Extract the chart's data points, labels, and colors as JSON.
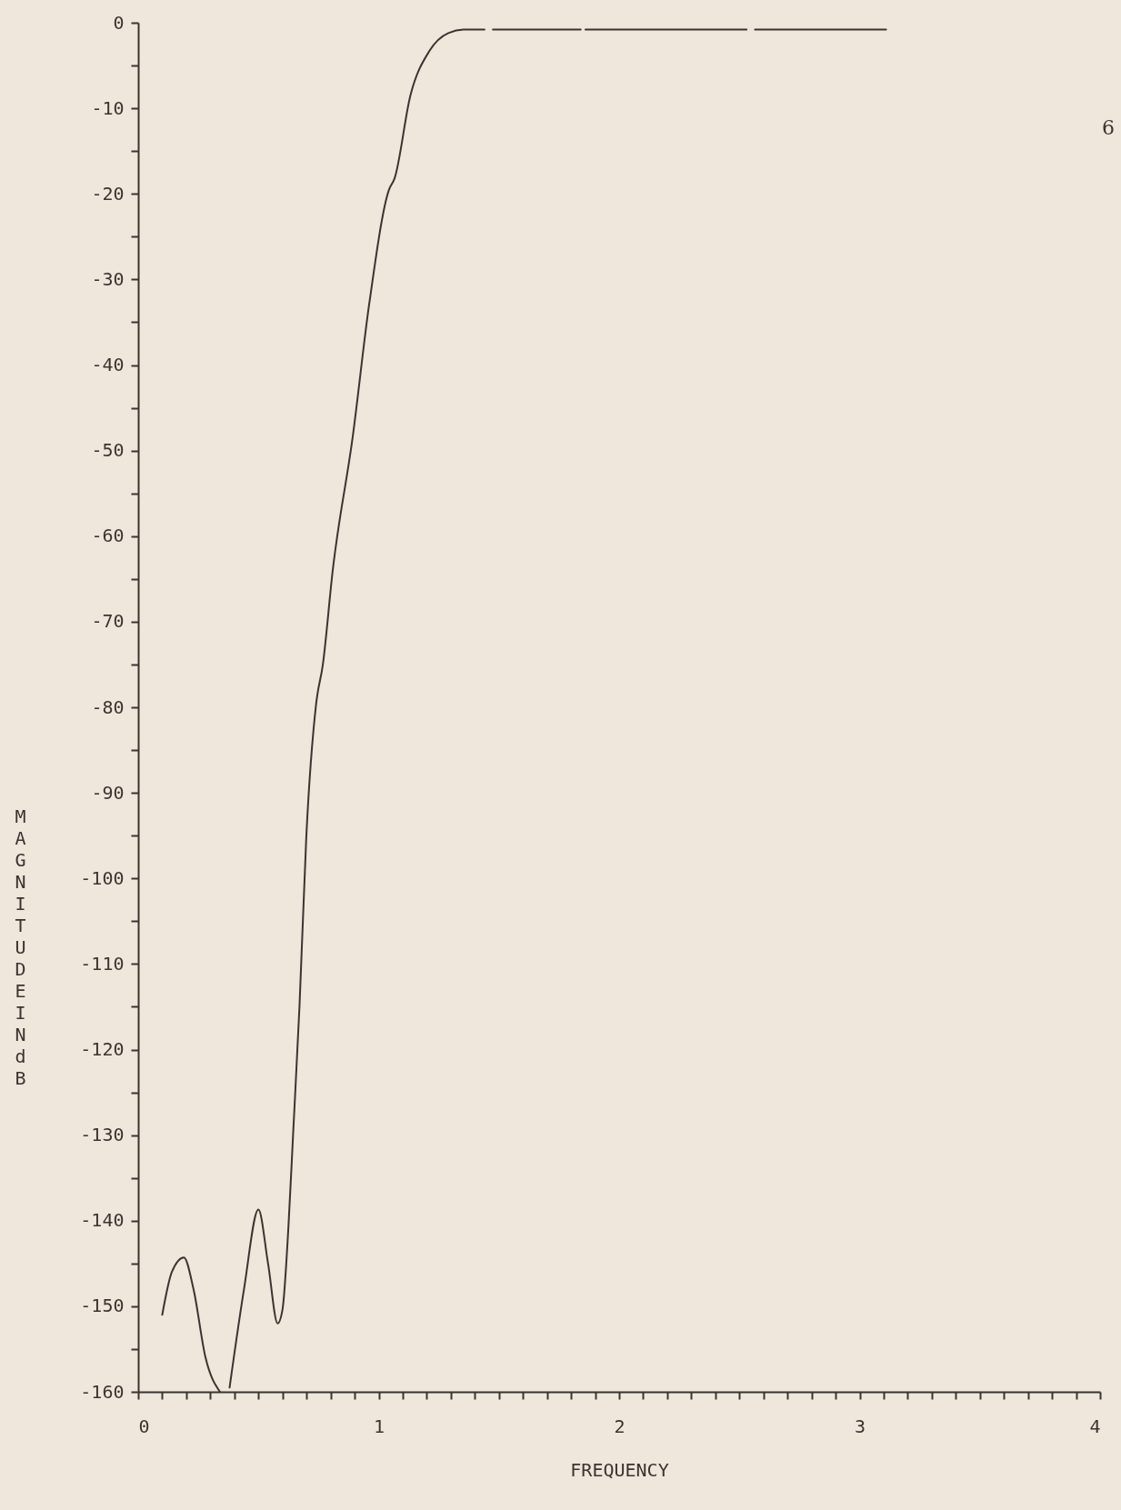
{
  "chart_data": {
    "type": "line",
    "xlabel": "FREQUENCY",
    "ylabel": "MAGNITUDE IN dB",
    "annotations": [
      "6"
    ],
    "x": [
      0.1,
      0.14,
      0.19,
      0.23,
      0.28,
      0.34,
      0.35,
      0.38,
      0.44,
      0.5,
      0.54,
      0.58,
      0.6,
      0.625,
      0.644,
      0.671,
      0.699,
      0.74,
      0.768,
      0.809,
      0.892,
      0.961,
      1.043,
      1.066,
      1.132,
      1.211,
      1.29,
      1.356,
      1.44,
      1.45,
      1.475,
      1.84,
      1.85,
      1.86,
      2.53,
      2.55,
      2.565,
      3.11
    ],
    "series": [
      {
        "color": "#3a3530",
        "values": [
          -151,
          -146,
          -144.3,
          -148,
          -156,
          -160,
          null,
          -159.5,
          -148,
          -138.7,
          -145,
          -152,
          -150.4,
          -140.6,
          -130,
          -114.8,
          -95.2,
          -79.6,
          -75,
          -64,
          -48.4,
          -32.8,
          -19.5,
          -18.2,
          -8.5,
          -3.3,
          -1.2,
          -0.8,
          -0.8,
          null,
          -0.8,
          -0.8,
          null,
          -0.8,
          -0.8,
          null,
          -0.8,
          -0.8
        ]
      }
    ],
    "xlim": [
      0,
      4
    ],
    "ylim": [
      -160,
      0
    ],
    "xticks": [
      0,
      {
        "value": 0.1,
        "label": null
      },
      {
        "value": 0.2,
        "label": null
      },
      {
        "value": 0.3,
        "label": null
      },
      {
        "value": 0.4,
        "label": null
      },
      {
        "value": 0.5,
        "label": null
      },
      {
        "value": 0.6,
        "label": null
      },
      {
        "value": 0.7,
        "label": null
      },
      {
        "value": 0.8,
        "label": null
      },
      {
        "value": 0.9,
        "label": null
      },
      1,
      {
        "value": 1.1,
        "label": null
      },
      {
        "value": 1.2,
        "label": null
      },
      {
        "value": 1.3,
        "label": null
      },
      {
        "value": 1.4,
        "label": null
      },
      {
        "value": 1.5,
        "label": null
      },
      {
        "value": 1.6,
        "label": null
      },
      {
        "value": 1.7,
        "label": null
      },
      {
        "value": 1.8,
        "label": null
      },
      {
        "value": 1.9,
        "label": null
      },
      2,
      {
        "value": 2.1,
        "label": null
      },
      {
        "value": 2.2,
        "label": null
      },
      {
        "value": 2.3,
        "label": null
      },
      {
        "value": 2.4,
        "label": null
      },
      {
        "value": 2.5,
        "label": null
      },
      {
        "value": 2.6,
        "label": null
      },
      {
        "value": 2.7,
        "label": null
      },
      {
        "value": 2.8,
        "label": null
      },
      {
        "value": 2.9,
        "label": null
      },
      3,
      {
        "value": 3.1,
        "label": null
      },
      {
        "value": 3.2,
        "label": null
      },
      {
        "value": 3.3,
        "label": null
      },
      {
        "value": 3.4,
        "label": null
      },
      {
        "value": 3.5,
        "label": null
      },
      {
        "value": 3.6,
        "label": null
      },
      {
        "value": 3.7,
        "label": null
      },
      {
        "value": 3.8,
        "label": null
      },
      {
        "value": 3.9,
        "label": null
      },
      4
    ],
    "yticks": [
      0,
      {
        "value": -5,
        "label": null
      },
      -10,
      {
        "value": -15,
        "label": null
      },
      -20,
      {
        "value": -25,
        "label": null
      },
      -30,
      {
        "value": -35,
        "label": null
      },
      -40,
      {
        "value": -45,
        "label": null
      },
      -50,
      {
        "value": -55,
        "label": null
      },
      -60,
      {
        "value": -65,
        "label": null
      },
      -70,
      {
        "value": -75,
        "label": null
      },
      -80,
      {
        "value": -85,
        "label": null
      },
      -90,
      {
        "value": -95,
        "label": null
      },
      -100,
      {
        "value": -105,
        "label": null
      },
      -110,
      {
        "value": -115,
        "label": null
      },
      -120,
      {
        "value": -125,
        "label": null
      },
      -130,
      {
        "value": -135,
        "label": null
      },
      -140,
      {
        "value": -145,
        "label": null
      },
      -150,
      {
        "value": -155,
        "label": null
      },
      -160
    ],
    "grid": false,
    "marker": "none",
    "line_style": "solid"
  }
}
